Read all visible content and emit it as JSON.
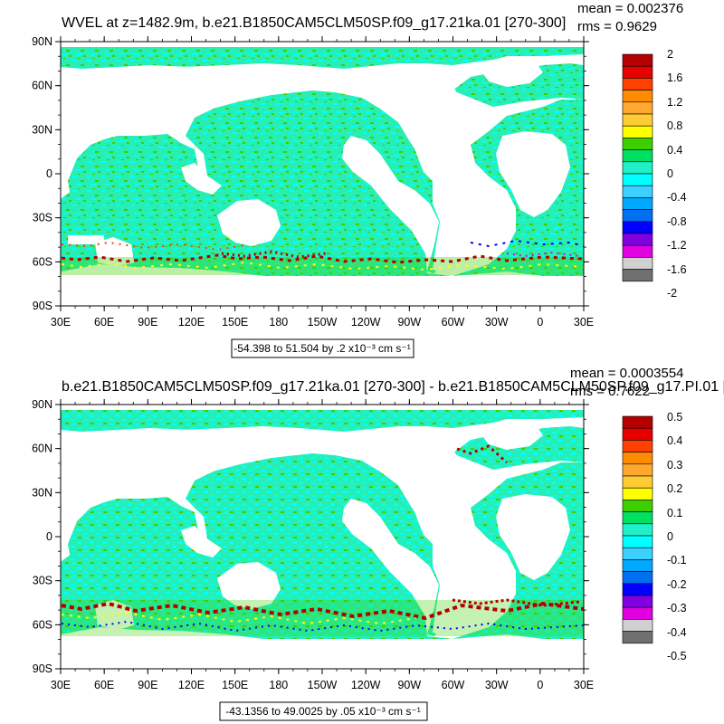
{
  "panels": [
    {
      "title": "WVEL at z=1482.9m, b.e21.B1850CAM5CLM50SP.f09_g17.21ka.01 [270-300]",
      "mean": "mean = 0.002376",
      "rms": "rms = 0.9629",
      "info": "-54.398 to 51.504 by .2 x10⁻³ cm s⁻¹",
      "colorbar_labels": [
        "2",
        "1.6",
        "1.2",
        "0.8",
        "0.4",
        "0",
        "-0.4",
        "-0.8",
        "-1.2",
        "-1.6",
        "-2"
      ]
    },
    {
      "title": "b.e21.B1850CAM5CLM50SP.f09_g17.21ka.01 [270-300] - b.e21.B1850CAM5CLM50SP.f09_g17.PI.01 [",
      "mean": "mean = 0.0003554",
      "rms": "rms = 0.7622",
      "info": "-43.1356 to 49.0025 by .05 x10⁻³ cm s⁻¹",
      "colorbar_labels": [
        "0.5",
        "0.4",
        "0.3",
        "0.2",
        "0.1",
        "0",
        "-0.1",
        "-0.2",
        "-0.3",
        "-0.4",
        "-0.5"
      ]
    }
  ],
  "axes": {
    "lat_labels": [
      "90N",
      "60N",
      "30N",
      "0",
      "30S",
      "60S",
      "90S"
    ],
    "lon_labels": [
      "30E",
      "60E",
      "90E",
      "120E",
      "150E",
      "180",
      "150W",
      "120W",
      "90W",
      "60W",
      "30W",
      "0",
      "30E"
    ]
  },
  "colors": {
    "palette_top_to_bottom": [
      "#b40000",
      "#e60000",
      "#ff4000",
      "#ff8c00",
      "#ffa830",
      "#ffcc33",
      "#ffff00",
      "#3fcf00",
      "#00e060",
      "#20f0c8",
      "#00ffff",
      "#3cd0ff",
      "#00a8ff",
      "#0070f0",
      "#0000ff",
      "#8000e0",
      "#e000e0",
      "#d0d0d0",
      "#707070"
    ],
    "ocean_fill": "#27eeb4",
    "land": "#ffffff"
  }
}
